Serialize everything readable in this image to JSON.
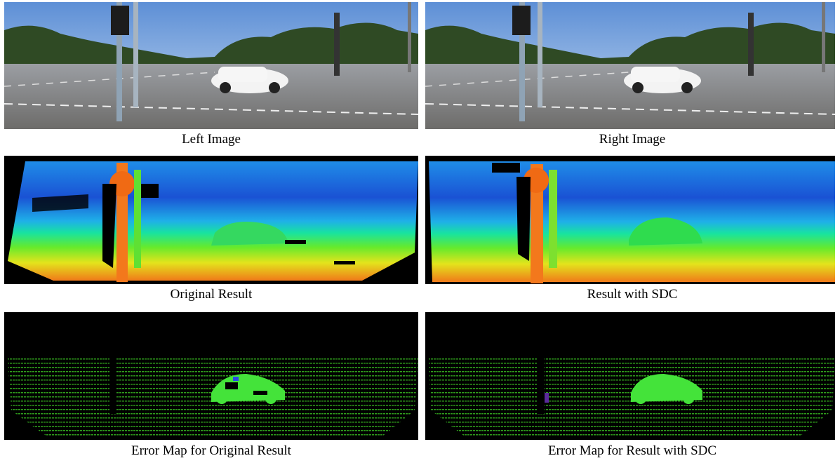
{
  "figure": {
    "panels": [
      {
        "id": "left_image",
        "caption": "Left Image"
      },
      {
        "id": "right_image",
        "caption": "Right Image"
      },
      {
        "id": "original_result",
        "caption": "Original Result"
      },
      {
        "id": "result_sdc",
        "caption": "Result with SDC"
      },
      {
        "id": "error_original",
        "caption": "Error Map for Original Result"
      },
      {
        "id": "error_sdc",
        "caption": "Error Map for Result with SDC"
      }
    ]
  }
}
